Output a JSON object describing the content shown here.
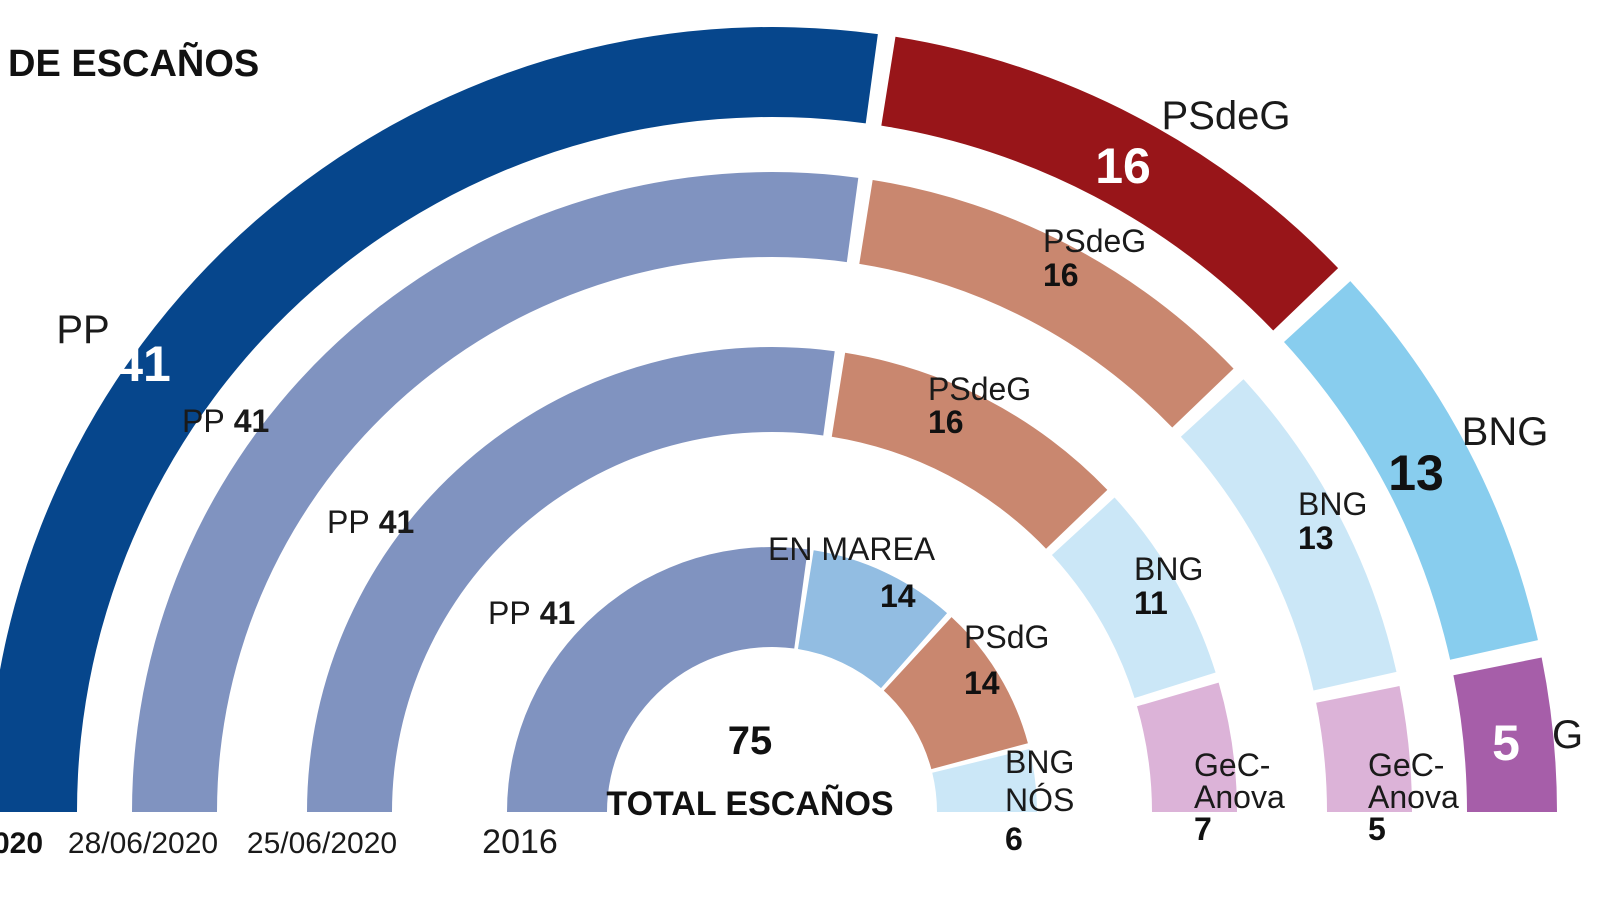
{
  "title": "N DE ESCAÑOS",
  "total_label": "TOTAL ESCAÑOS",
  "total_value": "75",
  "colors": {
    "pp_main": "#06468c",
    "psdeg_main": "#981519",
    "bng_main": "#88cdee",
    "gec_main": "#a65ea9",
    "pp_soft": "#8093c0",
    "psdeg_soft": "#c9876f",
    "bng_soft": "#cbe7f7",
    "gec_soft": "#dcb3d8",
    "enmarea_soft": "#92bde2"
  },
  "chart_data": {
    "type": "bar",
    "title": "N DE ESCAÑOS",
    "total_seats": 75,
    "series": [
      {
        "date_label": "020",
        "parties": [
          {
            "label": "PP",
            "value": 41
          },
          {
            "label": "PSdeG",
            "value": 16
          },
          {
            "label": "BNG",
            "value": 13
          },
          {
            "label": "G",
            "value": 5
          }
        ]
      },
      {
        "date_label": "28/06/2020",
        "parties": [
          {
            "label": "PP",
            "value": 41
          },
          {
            "label": "PSdeG",
            "value": 16
          },
          {
            "label": "BNG",
            "value": 13
          },
          {
            "label": "GeC-Anova",
            "value": 5
          }
        ]
      },
      {
        "date_label": "25/06/2020",
        "parties": [
          {
            "label": "PP",
            "value": 41
          },
          {
            "label": "PSdeG",
            "value": 16
          },
          {
            "label": "BNG",
            "value": 11
          },
          {
            "label": "GeC-Anova",
            "value": 7
          }
        ]
      },
      {
        "date_label": "2016",
        "parties": [
          {
            "label": "PP",
            "value": 41
          },
          {
            "label": "EN MAREA",
            "value": 14
          },
          {
            "label": "PSdG",
            "value": 14
          },
          {
            "label": "BNG NÓS",
            "value": 6
          }
        ]
      }
    ]
  }
}
